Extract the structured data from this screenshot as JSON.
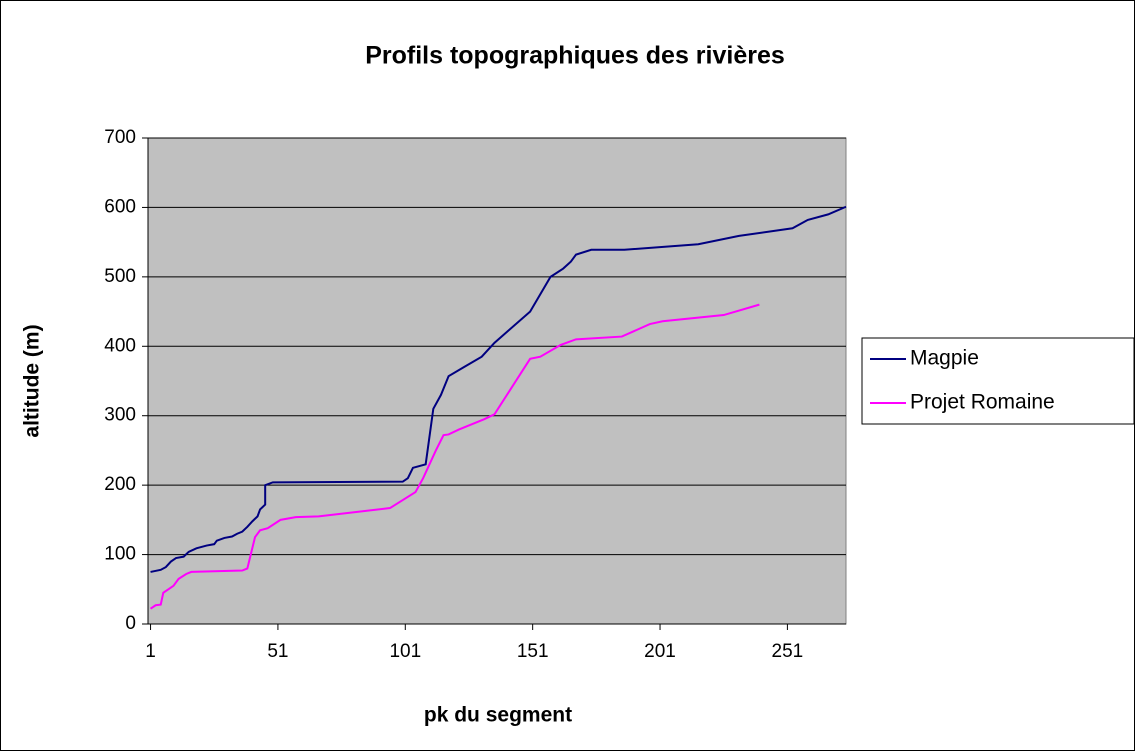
{
  "chart_data": {
    "type": "line",
    "title": "Profils topographiques des rivières",
    "xlabel": "pk du segment",
    "ylabel": "altitude (m)",
    "xlim": [
      0,
      274
    ],
    "xticks": [
      1,
      51,
      101,
      151,
      201,
      251
    ],
    "ylim": [
      0,
      700
    ],
    "yticks": [
      0,
      100,
      200,
      300,
      400,
      500,
      600,
      700
    ],
    "grid": true,
    "legend": "right",
    "series": [
      {
        "name": "Magpie",
        "color": "#000080",
        "x": [
          1,
          5,
          7,
          9,
          11,
          14,
          16,
          19,
          23,
          26,
          27,
          30,
          33,
          35,
          37,
          39,
          41,
          43,
          44,
          46,
          46,
          49,
          100,
          102,
          104,
          109,
          112,
          115,
          118,
          124,
          131,
          136,
          150,
          158,
          163,
          166,
          168,
          174,
          187,
          216,
          232,
          253,
          259,
          267,
          274
        ],
        "values": [
          75,
          78,
          82,
          90,
          95,
          97,
          104,
          109,
          113,
          115,
          120,
          124,
          126,
          130,
          133,
          140,
          148,
          155,
          165,
          172,
          200,
          204,
          205,
          210,
          225,
          230,
          310,
          330,
          357,
          370,
          385,
          405,
          450,
          500,
          512,
          522,
          532,
          539,
          539,
          547,
          559,
          570,
          582,
          590,
          601
        ]
      },
      {
        "name": "Projet Romaine",
        "color": "#ff00ff",
        "x": [
          1,
          3,
          5,
          6,
          8,
          10,
          12,
          15,
          17,
          37,
          39,
          42,
          44,
          47,
          52,
          58,
          67,
          95,
          105,
          108,
          113,
          116,
          118,
          122,
          132,
          136,
          150,
          154,
          162,
          168,
          186,
          197,
          202,
          226,
          240
        ],
        "values": [
          22,
          27,
          28,
          45,
          50,
          55,
          65,
          72,
          75,
          77,
          80,
          125,
          135,
          138,
          150,
          154,
          155,
          167,
          190,
          210,
          250,
          272,
          273,
          280,
          295,
          302,
          382,
          385,
          402,
          410,
          414,
          432,
          436,
          445,
          460
        ]
      }
    ]
  }
}
